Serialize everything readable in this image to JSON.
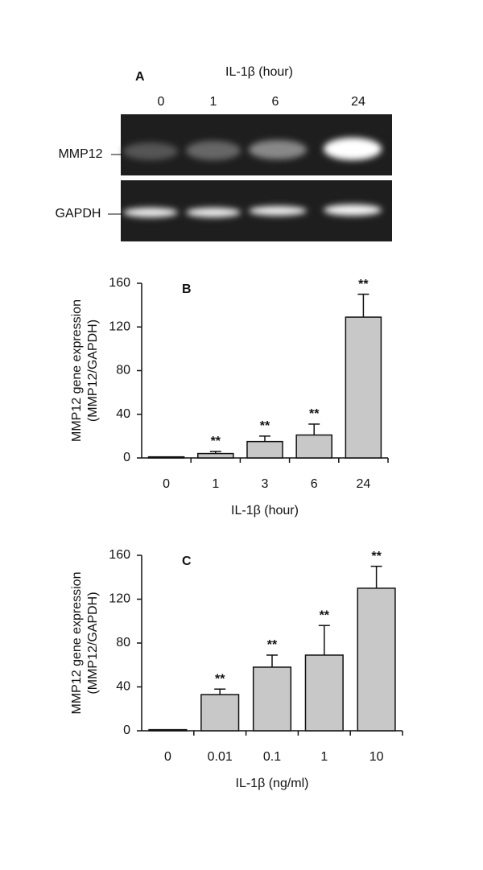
{
  "panel_a": {
    "label": "A",
    "title": "IL-1β (hour)",
    "lanes": [
      "0",
      "1",
      "6",
      "24"
    ],
    "rows": [
      "MMP12",
      "GAPDH"
    ]
  },
  "chart_data": [
    {
      "type": "bar",
      "panel": "B",
      "categories": [
        "0",
        "1",
        "3",
        "6",
        "24"
      ],
      "values": [
        1,
        4,
        15,
        21,
        129
      ],
      "errors": [
        0,
        2,
        5,
        10,
        21
      ],
      "significance": [
        null,
        "**",
        "**",
        "**",
        "**"
      ],
      "ylabel": [
        "MMP12 gene expression",
        "(MMP12/GAPDH)"
      ],
      "xlabel": "IL-1β (hour)",
      "color": "#c8c8c8",
      "ylim": [
        0,
        160
      ],
      "yticks": [
        0,
        40,
        80,
        120,
        160
      ]
    },
    {
      "type": "bar",
      "panel": "C",
      "categories": [
        "0",
        "0.01",
        "0.1",
        "1",
        "10"
      ],
      "values": [
        1,
        33,
        58,
        69,
        130
      ],
      "errors": [
        0,
        5,
        11,
        27,
        20
      ],
      "significance": [
        null,
        "**",
        "**",
        "**",
        "**"
      ],
      "ylabel": [
        "MMP12 gene expression",
        "(MMP12/GAPDH)"
      ],
      "xlabel": "IL-1β (ng/ml)",
      "color": "#c8c8c8",
      "ylim": [
        0,
        160
      ],
      "yticks": [
        0,
        40,
        80,
        120,
        160
      ]
    }
  ]
}
